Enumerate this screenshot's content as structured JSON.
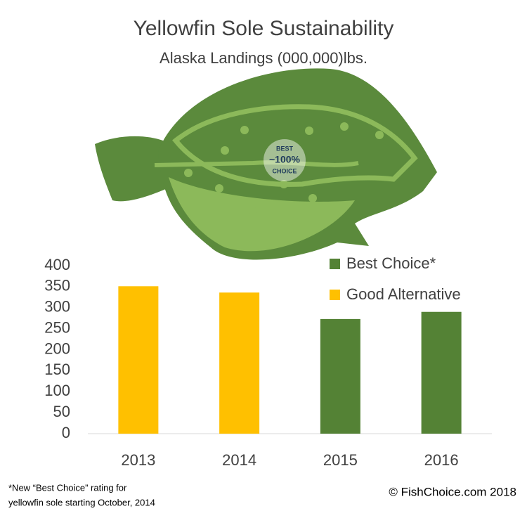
{
  "chart_data": {
    "type": "bar",
    "title": "Yellowfin Sole Sustainability",
    "subtitle": "Alaska Landings (000,000)lbs.",
    "categories": [
      "2013",
      "2014",
      "2015",
      "2016"
    ],
    "series": [
      {
        "name": "Best Choice*",
        "color": "#548235",
        "values": [
          null,
          null,
          273,
          290
        ]
      },
      {
        "name": "Good Alternative",
        "color": "#FFC000",
        "values": [
          351,
          336,
          null,
          null
        ]
      }
    ],
    "ylim": [
      0,
      400
    ],
    "yticks": [
      0,
      50,
      100,
      150,
      200,
      250,
      300,
      350,
      400
    ],
    "grid": false,
    "legend": "top-right",
    "badge": {
      "top": "BEST",
      "middle": "~100%",
      "bottom": "CHOICE"
    },
    "footnote": [
      "*New “Best Choice” rating for",
      "yellowfin sole starting October, 2014"
    ],
    "credit": "© FishChoice.com 2018"
  }
}
